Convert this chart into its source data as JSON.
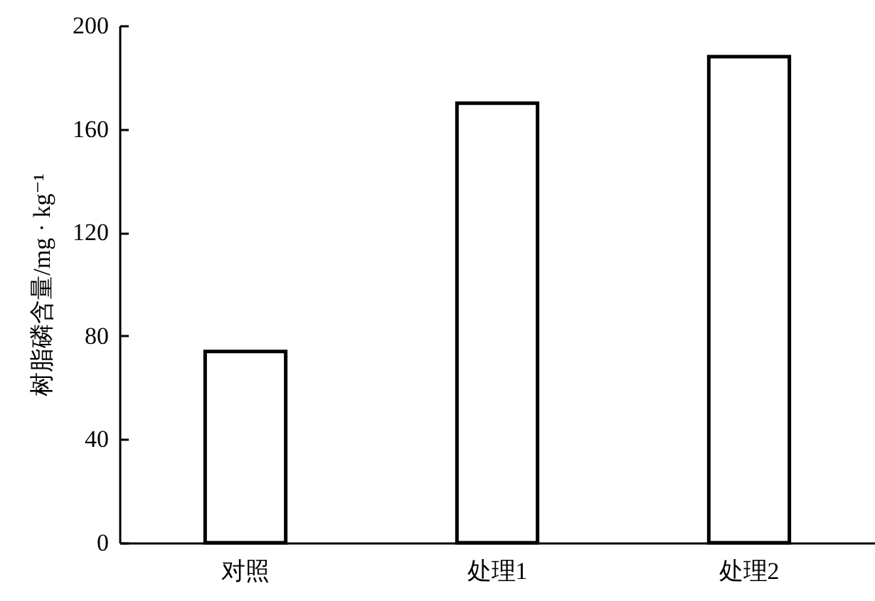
{
  "chart_data": {
    "type": "bar",
    "ylabel": "树脂磷含量/mg · kg⁻¹",
    "categories": [
      "对照",
      "处理1",
      "处理2"
    ],
    "values": [
      74,
      170,
      188
    ],
    "color": "#ffffff",
    "ylim": [
      0,
      200
    ],
    "yticks": [
      0,
      40,
      80,
      120,
      160,
      200
    ],
    "grid": false
  }
}
